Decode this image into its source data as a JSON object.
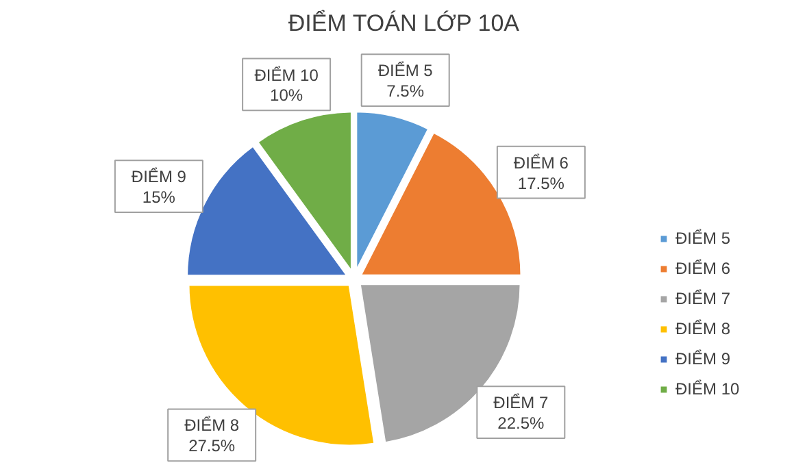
{
  "chart_data": {
    "type": "pie",
    "title": "ĐIỂM TOÁN LỚP 10A",
    "categories": [
      "ĐIỂM 5",
      "ĐIỂM 6",
      "ĐIỂM 7",
      "ĐIỂM 8",
      "ĐIỂM 9",
      "ĐIỂM 10"
    ],
    "values": [
      7.5,
      17.5,
      22.5,
      27.5,
      15,
      10
    ],
    "colors": [
      "#5b9bd5",
      "#ed7d31",
      "#a5a5a5",
      "#ffc000",
      "#4472c4",
      "#70ad47"
    ],
    "value_labels": [
      "7.5%",
      "17.5%",
      "22.5%",
      "27.5%",
      "15%",
      "10%"
    ],
    "legend": "right"
  }
}
